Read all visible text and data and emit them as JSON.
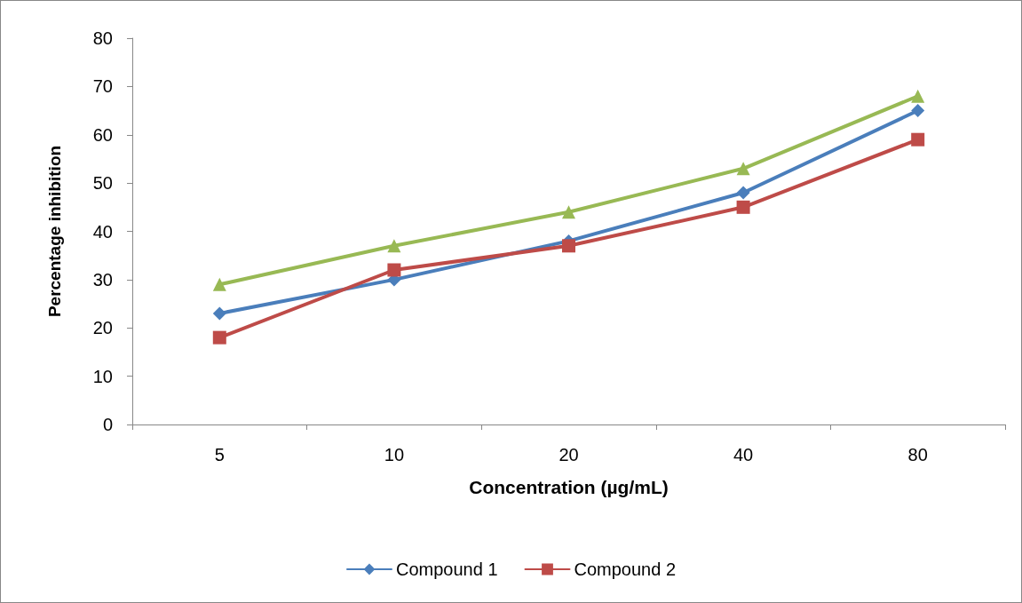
{
  "chart_data": {
    "type": "line",
    "xlabel": "Concentration (µg/mL)",
    "ylabel": "Percentage inhibition",
    "categories": [
      "5",
      "10",
      "20",
      "40",
      "80"
    ],
    "series": [
      {
        "name": "Compound 1",
        "color": "#4a7ebb",
        "marker": "diamond",
        "values": [
          23,
          30,
          38,
          48,
          65
        ]
      },
      {
        "name": "Compound 2",
        "color": "#be4b48",
        "marker": "square",
        "values": [
          18,
          32,
          37,
          45,
          59
        ]
      },
      {
        "color": "#98b954",
        "marker": "triangle",
        "values": [
          29,
          37,
          44,
          53,
          68
        ]
      }
    ],
    "ylim": [
      0,
      80
    ],
    "yticks": [
      0,
      10,
      20,
      30,
      40,
      50,
      60,
      70,
      80
    ],
    "grid": false,
    "legend": "bottom"
  }
}
